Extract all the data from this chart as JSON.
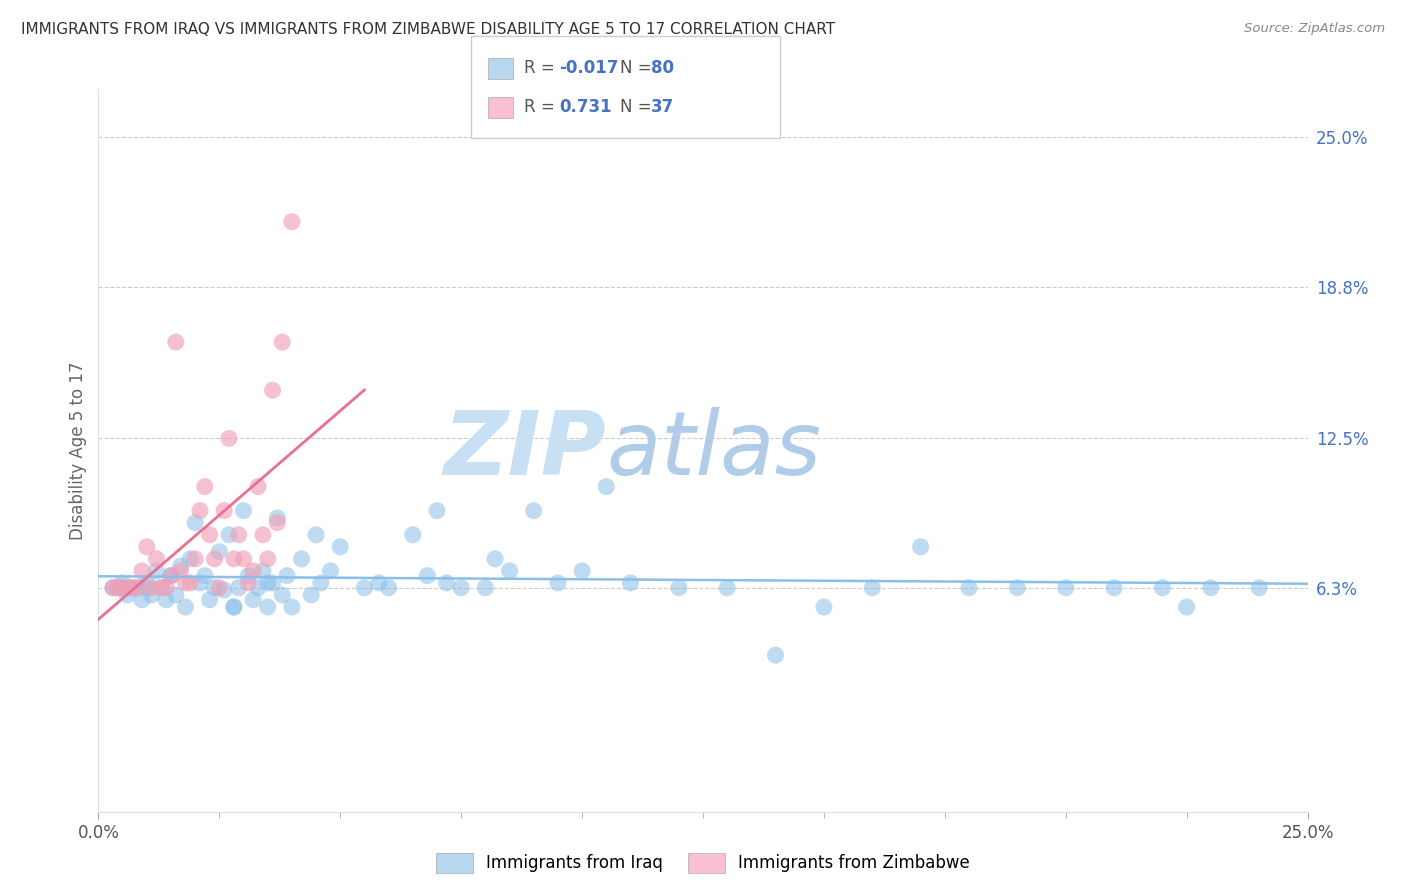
{
  "title": "IMMIGRANTS FROM IRAQ VS IMMIGRANTS FROM ZIMBABWE DISABILITY AGE 5 TO 17 CORRELATION CHART",
  "source": "Source: ZipAtlas.com",
  "ylabel": "Disability Age 5 to 17",
  "legend_label_iraq": "Immigrants from Iraq",
  "legend_label_zimbabwe": "Immigrants from Zimbabwe",
  "iraq_R": -0.017,
  "iraq_N": 80,
  "zimbabwe_R": 0.731,
  "zimbabwe_N": 37,
  "xlim": [
    0.0,
    25.0
  ],
  "ylim": [
    -3.0,
    27.0
  ],
  "x_ticks": [
    0.0,
    25.0
  ],
  "x_tick_labels": [
    "0.0%",
    "25.0%"
  ],
  "y_ticks": [
    6.3,
    12.5,
    18.8,
    25.0
  ],
  "y_tick_labels": [
    "6.3%",
    "12.5%",
    "18.8%",
    "25.0%"
  ],
  "color_iraq": "#89bfe8",
  "color_zimbabwe": "#f0a0b8",
  "color_iraq_line": "#89bfe8",
  "color_zimbabwe_line": "#e87090",
  "color_iraq_legend_box": "#b8d8f0",
  "color_zimbabwe_legend_box": "#f8c0d0",
  "color_text_dark": "#4472c4",
  "color_label": "#666666",
  "watermark_zip": "#c8e0f4",
  "watermark_atlas": "#b0cce8",
  "grid_color": "#cccccc",
  "background_color": "#ffffff",
  "iraq_x": [
    0.3,
    0.4,
    0.5,
    0.5,
    0.5,
    0.6,
    0.7,
    0.8,
    0.9,
    1.0,
    1.0,
    1.1,
    1.2,
    1.3,
    1.4,
    1.5,
    1.6,
    1.7,
    1.8,
    1.9,
    2.0,
    2.1,
    2.2,
    2.3,
    2.4,
    2.5,
    2.6,
    2.7,
    2.8,
    2.9,
    3.0,
    3.1,
    3.2,
    3.3,
    3.4,
    3.5,
    3.6,
    3.7,
    3.8,
    3.9,
    4.0,
    4.2,
    4.4,
    4.6,
    4.8,
    5.0,
    5.5,
    6.0,
    6.5,
    7.0,
    7.5,
    8.0,
    8.5,
    9.0,
    10.0,
    11.0,
    12.0,
    13.0,
    14.0,
    15.0,
    16.0,
    17.0,
    18.0,
    19.0,
    20.0,
    21.0,
    22.0,
    22.5,
    23.0,
    24.0,
    10.5,
    8.2,
    5.8,
    6.8,
    7.2,
    9.5,
    4.5,
    3.5,
    2.8,
    1.5
  ],
  "iraq_y": [
    6.3,
    6.3,
    6.3,
    6.3,
    6.5,
    6.0,
    6.3,
    6.3,
    5.8,
    6.5,
    6.3,
    6.0,
    7.0,
    6.3,
    5.8,
    6.8,
    6.0,
    7.2,
    5.5,
    7.5,
    9.0,
    6.5,
    6.8,
    5.8,
    6.3,
    7.8,
    6.2,
    8.5,
    5.5,
    6.3,
    9.5,
    6.8,
    5.8,
    6.3,
    7.0,
    5.5,
    6.5,
    9.2,
    6.0,
    6.8,
    5.5,
    7.5,
    6.0,
    6.5,
    7.0,
    8.0,
    6.3,
    6.3,
    8.5,
    9.5,
    6.3,
    6.3,
    7.0,
    9.5,
    7.0,
    6.5,
    6.3,
    6.3,
    3.5,
    5.5,
    6.3,
    8.0,
    6.3,
    6.3,
    6.3,
    6.3,
    6.3,
    5.5,
    6.3,
    6.3,
    10.5,
    7.5,
    6.5,
    6.8,
    6.5,
    6.5,
    8.5,
    6.5,
    5.5,
    6.8
  ],
  "zimbabwe_x": [
    0.3,
    0.4,
    0.5,
    0.6,
    0.7,
    0.8,
    0.9,
    1.0,
    1.1,
    1.2,
    1.3,
    1.4,
    1.5,
    1.6,
    1.7,
    1.8,
    1.9,
    2.0,
    2.1,
    2.2,
    2.3,
    2.4,
    2.5,
    2.6,
    2.7,
    2.8,
    2.9,
    3.0,
    3.1,
    3.2,
    3.3,
    3.4,
    3.5,
    3.6,
    3.7,
    3.8,
    4.0
  ],
  "zimbabwe_y": [
    6.3,
    6.3,
    6.3,
    6.3,
    6.3,
    6.3,
    7.0,
    8.0,
    6.3,
    7.5,
    6.3,
    6.3,
    6.8,
    16.5,
    7.0,
    6.5,
    6.5,
    7.5,
    9.5,
    10.5,
    8.5,
    7.5,
    6.3,
    9.5,
    12.5,
    7.5,
    8.5,
    7.5,
    6.5,
    7.0,
    10.5,
    8.5,
    7.5,
    14.5,
    9.0,
    16.5,
    21.5
  ]
}
